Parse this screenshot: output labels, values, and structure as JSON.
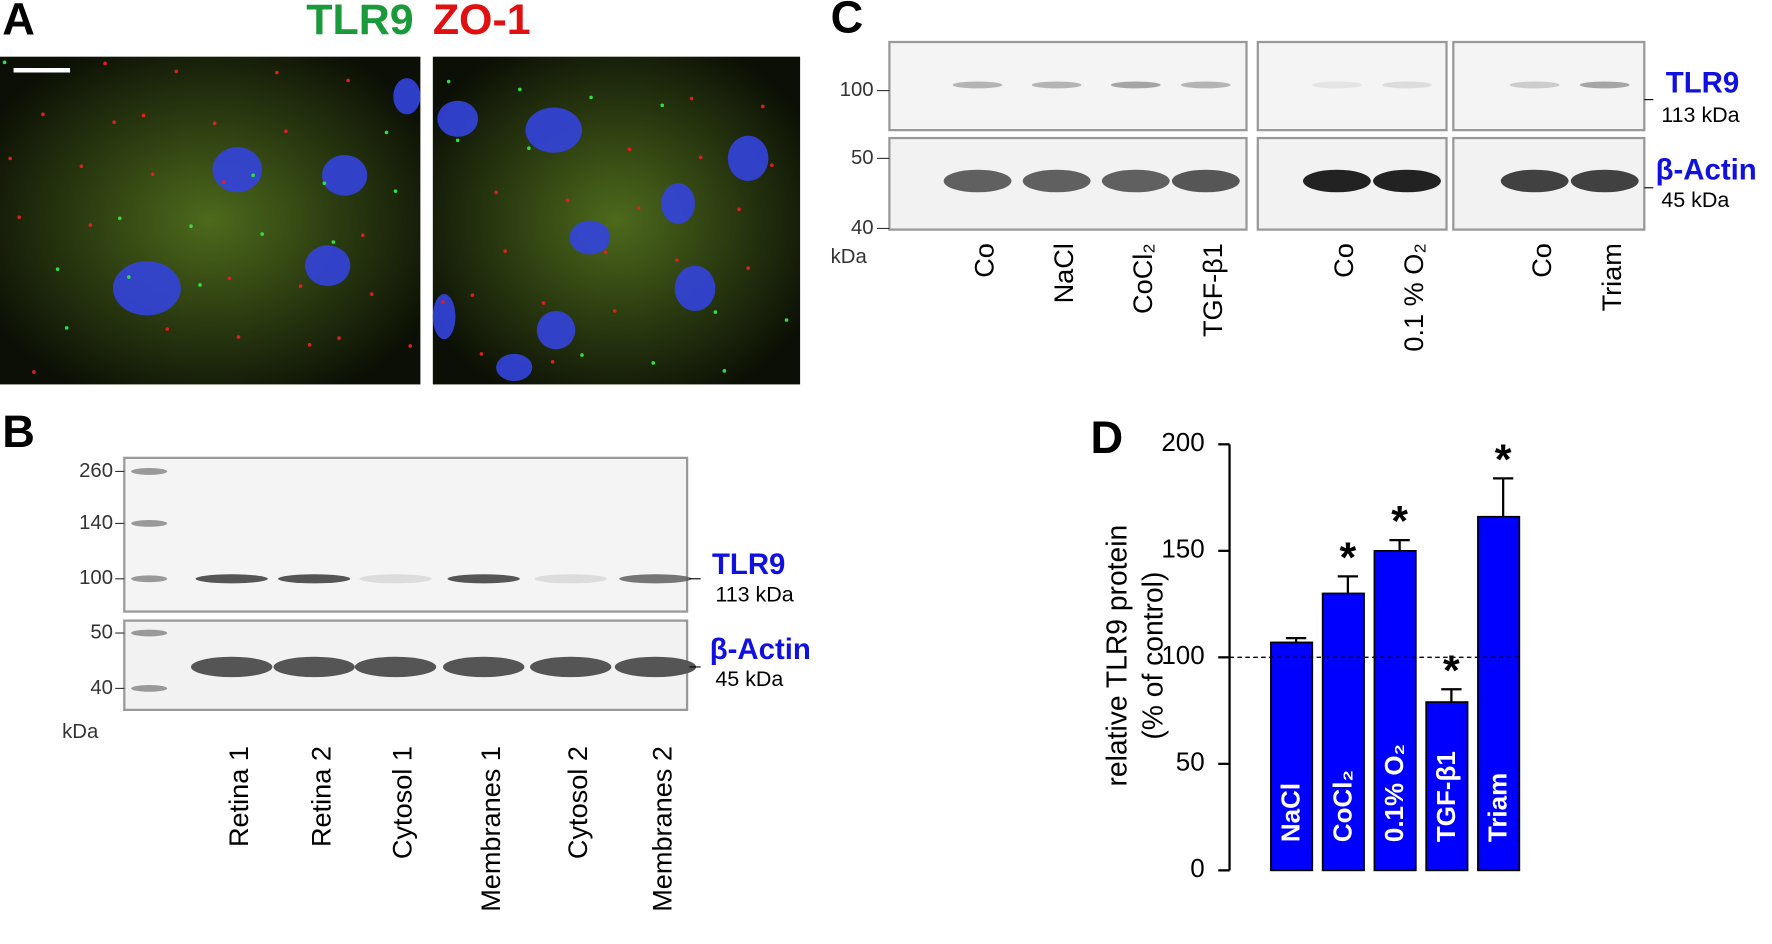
{
  "panels": {
    "A": {
      "label": "A",
      "title_green": "TLR9",
      "title_red": "ZO-1"
    },
    "B": {
      "label": "B",
      "markers": [
        "260",
        "140",
        "100",
        "50",
        "40"
      ],
      "unit": "kDa",
      "tlr9": "TLR9",
      "tlr9_kda": "113 kDa",
      "actin": "β-Actin",
      "actin_kda": "45 kDa",
      "lanes": [
        "Retina 1",
        "Retina 2",
        "Cytosol 1",
        "Membranes 1",
        "Cytosol 2",
        "Membranes 2"
      ]
    },
    "C": {
      "label": "C",
      "markers": [
        "100",
        "50",
        "40"
      ],
      "unit": "kDa",
      "tlr9": "TLR9",
      "tlr9_kda": "113 kDa",
      "actin": "β-Actin",
      "actin_kda": "45 kDa",
      "lanes": [
        "Co",
        "NaCl",
        "CoCl₂",
        "TGF-β1",
        "Co",
        "0.1 % O₂",
        "Co",
        "Triam"
      ]
    }
  },
  "chart_data": {
    "type": "bar",
    "label": "D",
    "ylabel": "relative TLR9 protein",
    "ylabel2": "(% of control)",
    "categories": [
      "NaCl",
      "CoCl₂",
      "0.1% O₂",
      "TGF-β1",
      "Triam"
    ],
    "values": [
      107,
      130,
      150,
      79,
      166
    ],
    "errors": [
      2,
      8,
      5,
      6,
      18
    ],
    "significance": [
      null,
      "*",
      "*",
      "*",
      "*"
    ],
    "color": "#0000ff",
    "ylim": [
      0,
      200
    ],
    "yticks": [
      0,
      50,
      100,
      150,
      200
    ],
    "reference_line": 100
  }
}
